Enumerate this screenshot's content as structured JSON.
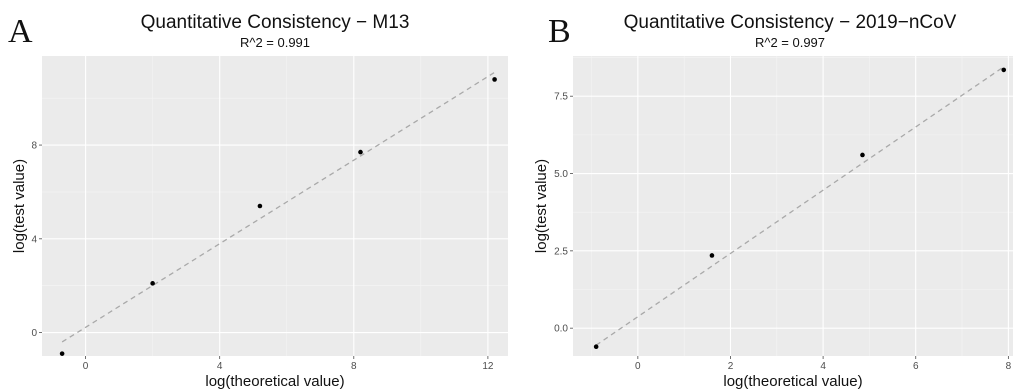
{
  "chart_data": [
    {
      "type": "scatter",
      "panel": "A",
      "title": "Quantitative Consistency − M13",
      "subtitle": "R^2 = 0.991",
      "xlabel": "log(theoretical value)",
      "ylabel": "log(test value)",
      "xlim": [
        -1.3,
        12.6
      ],
      "ylim": [
        -1.0,
        11.8
      ],
      "x_ticks": [
        0,
        4,
        8,
        12
      ],
      "y_ticks": [
        0,
        4,
        8
      ],
      "grid": true,
      "points": [
        {
          "x": -0.7,
          "y": -0.9
        },
        {
          "x": 2.0,
          "y": 2.1
        },
        {
          "x": 5.2,
          "y": 5.4
        },
        {
          "x": 8.2,
          "y": 7.7
        },
        {
          "x": 12.2,
          "y": 10.8
        }
      ],
      "fit_line": {
        "x": [
          -0.7,
          12.2
        ],
        "y": [
          -0.4,
          11.1
        ]
      }
    },
    {
      "type": "scatter",
      "panel": "B",
      "title": "Quantitative Consistency − 2019−nCoV",
      "subtitle": "R^2 = 0.997",
      "xlabel": "log(theoretical value)",
      "ylabel": "log(test value)",
      "xlim": [
        -1.4,
        8.1
      ],
      "ylim": [
        -0.9,
        8.8
      ],
      "x_ticks": [
        0,
        2,
        4,
        6,
        8
      ],
      "y_ticks": [
        0.0,
        2.5,
        5.0,
        7.5
      ],
      "y_tick_labels": [
        "0.0",
        "2.5",
        "5.0",
        "7.5"
      ],
      "grid": true,
      "points": [
        {
          "x": -0.9,
          "y": -0.6
        },
        {
          "x": 1.6,
          "y": 2.35
        },
        {
          "x": 4.85,
          "y": 5.6
        },
        {
          "x": 7.9,
          "y": 8.35
        }
      ],
      "fit_line": {
        "x": [
          -0.9,
          7.9
        ],
        "y": [
          -0.55,
          8.45
        ]
      }
    }
  ]
}
